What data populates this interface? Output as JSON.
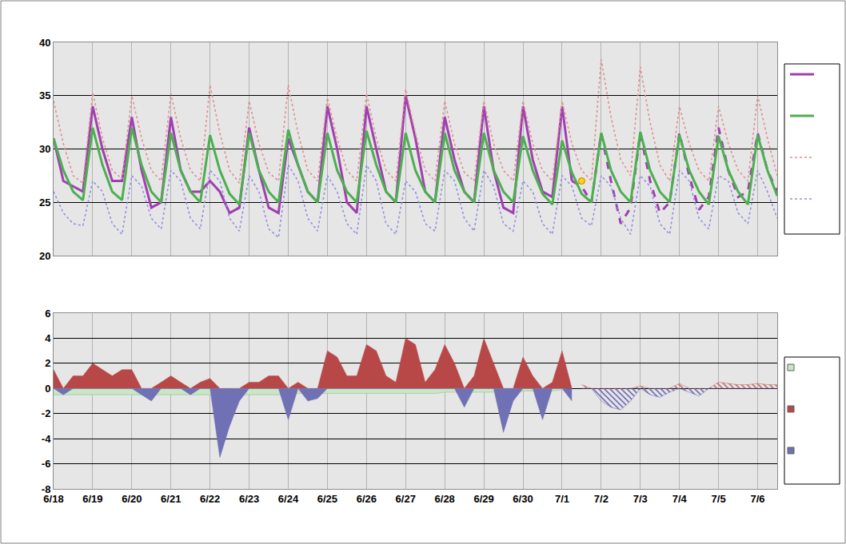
{
  "chart_data": [
    {
      "type": "line",
      "x": [
        0,
        0.25,
        0.5,
        0.75,
        1,
        1.25,
        1.5,
        1.75,
        2,
        2.25,
        2.5,
        2.75,
        3,
        3.25,
        3.5,
        3.75,
        4,
        4.25,
        4.5,
        4.75,
        5,
        5.25,
        5.5,
        5.75,
        6,
        6.25,
        6.5,
        6.75,
        7,
        7.25,
        7.5,
        7.75,
        8,
        8.25,
        8.5,
        8.75,
        9,
        9.25,
        9.5,
        9.75,
        10,
        10.25,
        10.5,
        10.75,
        11,
        11.25,
        11.5,
        11.75,
        12,
        12.25,
        12.5,
        12.75,
        13,
        13.25,
        13.5,
        13.75,
        14,
        14.25,
        14.5,
        14.75,
        15,
        15.25,
        15.5,
        15.75,
        16,
        16.25,
        16.5,
        16.75,
        17,
        17.25,
        17.5,
        17.75,
        18,
        18.25,
        18.5
      ],
      "xlim": [
        0,
        18.5
      ],
      "xticks": [
        {
          "value": 0,
          "label": "6/18"
        },
        {
          "value": 1,
          "label": "6/19"
        },
        {
          "value": 2,
          "label": "6/20"
        },
        {
          "value": 3,
          "label": "6/21"
        },
        {
          "value": 4,
          "label": "6/22"
        },
        {
          "value": 5,
          "label": "6/23"
        },
        {
          "value": 6,
          "label": "6/24"
        },
        {
          "value": 7,
          "label": "6/25"
        },
        {
          "value": 8,
          "label": "6/26"
        },
        {
          "value": 9,
          "label": "6/27"
        },
        {
          "value": 10,
          "label": "6/28"
        },
        {
          "value": 11,
          "label": "6/29"
        },
        {
          "value": 12,
          "label": "6/30"
        },
        {
          "value": 13,
          "label": "7/1"
        },
        {
          "value": 14,
          "label": "7/2"
        },
        {
          "value": 15,
          "label": "7/3"
        },
        {
          "value": 16,
          "label": "7/4"
        },
        {
          "value": 17,
          "label": "7/5"
        },
        {
          "value": 18,
          "label": "7/6"
        }
      ],
      "ylim": [
        20,
        40
      ],
      "yticks": [
        20,
        25,
        30,
        35,
        40
      ],
      "grid": true,
      "legend": "right",
      "tick_labels": "y",
      "series": [
        {
          "color": "#a040b0",
          "line_style": "solid",
          "values": [
            31,
            27,
            26.5,
            26,
            34,
            30,
            27,
            27,
            33,
            28,
            24.5,
            25,
            33,
            28,
            26,
            26,
            27,
            26,
            24,
            24.5,
            32,
            28,
            24.5,
            24,
            31,
            28.5,
            26,
            25,
            34,
            30,
            25,
            24,
            34,
            30,
            26,
            25,
            35,
            31,
            26,
            25,
            33,
            29,
            26,
            25,
            34,
            28,
            24.5,
            24,
            34,
            29,
            26,
            25.5,
            34,
            27,
            null,
            null,
            null,
            null,
            null,
            null,
            null,
            null,
            null,
            null,
            null,
            null,
            null,
            null,
            null,
            null,
            null,
            null,
            null,
            null,
            null
          ]
        },
        {
          "color": "#a040b0",
          "line_style": "dash",
          "values": [
            null,
            null,
            null,
            null,
            null,
            null,
            null,
            null,
            null,
            null,
            null,
            null,
            null,
            null,
            null,
            null,
            null,
            null,
            null,
            null,
            null,
            null,
            null,
            null,
            null,
            null,
            null,
            null,
            null,
            null,
            null,
            null,
            null,
            null,
            null,
            null,
            null,
            null,
            null,
            null,
            null,
            null,
            null,
            null,
            null,
            null,
            null,
            null,
            null,
            null,
            null,
            null,
            null,
            27,
            26.5,
            25,
            31.5,
            27,
            23,
            24.5,
            31.5,
            27,
            24,
            25,
            31.5,
            27.5,
            24.3,
            25.5,
            32,
            28,
            25.5,
            26,
            31.5,
            28,
            26
          ]
        },
        {
          "color": "#4caf50",
          "line_style": "solid",
          "values": [
            31,
            28,
            26,
            25.2,
            32,
            28.5,
            26,
            25.2,
            32,
            28.5,
            26,
            25,
            31.5,
            28,
            26,
            25,
            31.3,
            28,
            25.8,
            24.8,
            31.5,
            28,
            26,
            25,
            31.8,
            28.5,
            26,
            25,
            31.5,
            28,
            26,
            25,
            31.7,
            28.5,
            26,
            25,
            31.5,
            28,
            26,
            25,
            31.5,
            28,
            26,
            25,
            31.5,
            28,
            26,
            25,
            31.2,
            28,
            25.8,
            24.8,
            30.8,
            27.8,
            25.8,
            25,
            31.5,
            28,
            26,
            25,
            31.6,
            28,
            26,
            25,
            31.3,
            28,
            26,
            24.8,
            31.2,
            28,
            26,
            24.8,
            31.3,
            28,
            25.6
          ]
        },
        {
          "color": "#e09090",
          "line_style": "dot",
          "values": [
            34.5,
            30.5,
            27.5,
            26.8,
            35.3,
            31,
            28,
            27.2,
            35,
            31,
            28,
            27,
            35.2,
            31,
            28,
            27,
            36,
            31.5,
            28,
            26.8,
            34.5,
            30.5,
            27.8,
            27,
            36,
            31.5,
            28,
            27,
            34.8,
            31,
            28,
            27,
            35.2,
            31,
            28,
            27,
            35.6,
            31.5,
            28,
            27,
            34.5,
            30.5,
            27.8,
            27,
            34.5,
            30.5,
            28,
            27,
            34.5,
            30.5,
            28,
            27,
            34.5,
            30.5,
            28,
            27,
            38.4,
            33,
            29,
            27.5,
            37.7,
            32.5,
            28.5,
            27,
            34,
            30.5,
            28,
            27,
            34,
            30.5,
            28,
            27,
            35,
            31,
            27.5
          ]
        },
        {
          "color": "#9090e0",
          "line_style": "dot",
          "values": [
            26,
            24,
            23,
            22.8,
            27,
            26,
            23,
            22,
            27.5,
            26.5,
            23.5,
            22.5,
            28,
            27,
            23.5,
            22.5,
            28,
            27,
            23.5,
            22.3,
            27.5,
            26,
            22.5,
            21.7,
            28.5,
            27,
            23.5,
            22.3,
            27.5,
            26,
            23,
            22,
            28.5,
            27,
            23,
            22,
            27,
            26,
            23,
            22.3,
            28,
            27,
            23.5,
            22.3,
            28,
            26.5,
            23,
            22.3,
            27,
            26,
            23,
            22,
            27.5,
            26.5,
            23.5,
            22.8,
            27.5,
            26.5,
            23.5,
            22,
            27.5,
            26.5,
            23,
            22,
            28,
            27,
            23.5,
            22.5,
            27.5,
            27,
            24,
            23,
            28,
            26,
            23.5
          ]
        },
        {
          "type": "scatter",
          "marker": "circle",
          "color": "#ffd400",
          "x": [
            13.5
          ],
          "values": [
            27
          ]
        }
      ]
    },
    {
      "type": "area",
      "x": [
        0,
        0.25,
        0.5,
        0.75,
        1,
        1.25,
        1.5,
        1.75,
        2,
        2.25,
        2.5,
        2.75,
        3,
        3.25,
        3.5,
        3.75,
        4,
        4.25,
        4.5,
        4.75,
        5,
        5.25,
        5.5,
        5.75,
        6,
        6.25,
        6.5,
        6.75,
        7,
        7.25,
        7.5,
        7.75,
        8,
        8.25,
        8.5,
        8.75,
        9,
        9.25,
        9.5,
        9.75,
        10,
        10.25,
        10.5,
        10.75,
        11,
        11.25,
        11.5,
        11.75,
        12,
        12.25,
        12.5,
        12.75,
        13,
        13.25,
        13.5,
        13.75,
        14,
        14.25,
        14.5,
        14.75,
        15,
        15.25,
        15.5,
        15.75,
        16,
        16.25,
        16.5,
        16.75,
        17,
        17.25,
        17.5,
        17.75,
        18,
        18.25,
        18.5
      ],
      "xlim": [
        0,
        18.5
      ],
      "xticks": [
        {
          "value": 0,
          "label": "6/18"
        },
        {
          "value": 1,
          "label": "6/19"
        },
        {
          "value": 2,
          "label": "6/20"
        },
        {
          "value": 3,
          "label": "6/21"
        },
        {
          "value": 4,
          "label": "6/22"
        },
        {
          "value": 5,
          "label": "6/23"
        },
        {
          "value": 6,
          "label": "6/24"
        },
        {
          "value": 7,
          "label": "6/25"
        },
        {
          "value": 8,
          "label": "6/26"
        },
        {
          "value": 9,
          "label": "6/27"
        },
        {
          "value": 10,
          "label": "6/28"
        },
        {
          "value": 11,
          "label": "6/29"
        },
        {
          "value": 12,
          "label": "6/30"
        },
        {
          "value": 13,
          "label": "7/1"
        },
        {
          "value": 14,
          "label": "7/2"
        },
        {
          "value": 15,
          "label": "7/3"
        },
        {
          "value": 16,
          "label": "7/4"
        },
        {
          "value": 17,
          "label": "7/5"
        },
        {
          "value": 18,
          "label": "7/6"
        }
      ],
      "ylim": [
        -8,
        6
      ],
      "yticks": [
        -8,
        -6,
        -4,
        -2,
        0,
        2,
        4,
        6
      ],
      "grid": true,
      "legend": "right",
      "series": [
        {
          "color": "#c8e6c8",
          "values": [
            -0.5,
            -0.5,
            -0.5,
            -0.5,
            -0.5,
            -0.5,
            -0.5,
            -0.5,
            -0.5,
            -0.5,
            -0.5,
            -0.5,
            -0.5,
            -0.5,
            -0.5,
            -0.5,
            -0.5,
            -0.5,
            -0.5,
            -0.5,
            -0.5,
            -0.5,
            -0.5,
            -0.5,
            -0.4,
            -0.4,
            -0.4,
            -0.4,
            -0.4,
            -0.4,
            -0.4,
            -0.4,
            -0.4,
            -0.4,
            -0.4,
            -0.4,
            -0.4,
            -0.4,
            -0.4,
            -0.4,
            -0.3,
            -0.3,
            -0.3,
            -0.3,
            -0.3,
            -0.3,
            -0.3,
            -0.3,
            -0.2,
            -0.2,
            -0.2,
            -0.2,
            -0.1,
            0.2,
            null,
            null,
            null,
            null,
            null,
            null,
            null,
            null,
            null,
            null,
            null,
            null,
            null,
            null,
            null,
            null,
            null,
            null,
            null,
            null,
            null
          ]
        },
        {
          "color": "#b84848",
          "values": [
            1.5,
            0,
            1,
            1,
            2,
            1.5,
            1,
            1.5,
            1.5,
            0,
            0,
            0.5,
            1,
            0.5,
            0,
            0.5,
            0.8,
            0,
            0,
            0,
            0.5,
            0.5,
            1,
            1,
            0,
            0.5,
            0,
            0,
            3,
            2.5,
            1,
            1,
            3.5,
            3,
            1,
            0.5,
            4,
            3.5,
            0.5,
            1.5,
            3.5,
            2,
            0,
            1,
            4,
            2,
            0,
            0,
            2.5,
            1,
            0,
            0.5,
            3,
            0,
            null,
            null,
            null,
            null,
            null,
            null,
            null,
            null,
            null,
            null,
            null,
            null,
            null,
            null,
            null,
            null,
            null,
            null,
            null,
            null,
            null
          ]
        },
        {
          "color": "#7070b4",
          "values": [
            0,
            -0.5,
            0,
            0,
            0,
            0,
            0,
            0,
            0,
            -0.5,
            -1,
            0,
            0,
            0,
            -0.5,
            0,
            0,
            -5.5,
            -3,
            -1,
            0,
            0,
            0,
            0,
            -2.5,
            0,
            -1,
            -0.8,
            0,
            0,
            0,
            0,
            0,
            0,
            0,
            0,
            0,
            0,
            0,
            0,
            0,
            0,
            -1.5,
            0,
            0,
            0,
            -3.5,
            -1,
            0,
            0,
            -2.5,
            0,
            0,
            -1,
            null,
            null,
            null,
            null,
            null,
            null,
            null,
            null,
            null,
            null,
            null,
            null,
            null,
            null,
            null,
            null,
            null,
            null,
            null,
            null,
            null
          ]
        },
        {
          "color": "#c06060",
          "marker": "hatched",
          "values": [
            null,
            null,
            null,
            null,
            null,
            null,
            null,
            null,
            null,
            null,
            null,
            null,
            null,
            null,
            null,
            null,
            null,
            null,
            null,
            null,
            null,
            null,
            null,
            null,
            null,
            null,
            null,
            null,
            null,
            null,
            null,
            null,
            null,
            null,
            null,
            null,
            null,
            null,
            null,
            null,
            null,
            null,
            null,
            null,
            null,
            null,
            null,
            null,
            null,
            null,
            null,
            null,
            null,
            null,
            0.3,
            0,
            0,
            0,
            0,
            0,
            0.2,
            0,
            0,
            0,
            0.4,
            0,
            0,
            0,
            0.5,
            0.4,
            0.3,
            0.3,
            0.4,
            0.3,
            0.3
          ]
        },
        {
          "color": "#6060b0",
          "marker": "hatched",
          "values": [
            null,
            null,
            null,
            null,
            null,
            null,
            null,
            null,
            null,
            null,
            null,
            null,
            null,
            null,
            null,
            null,
            null,
            null,
            null,
            null,
            null,
            null,
            null,
            null,
            null,
            null,
            null,
            null,
            null,
            null,
            null,
            null,
            null,
            null,
            null,
            null,
            null,
            null,
            null,
            null,
            null,
            null,
            null,
            null,
            null,
            null,
            null,
            null,
            null,
            null,
            null,
            null,
            null,
            null,
            0,
            0,
            -1,
            -1.5,
            -1.7,
            -1,
            0,
            -0.5,
            -0.7,
            -0.3,
            0,
            -0.3,
            -0.6,
            0,
            0,
            0,
            0,
            0,
            0,
            0,
            0
          ]
        }
      ]
    }
  ]
}
